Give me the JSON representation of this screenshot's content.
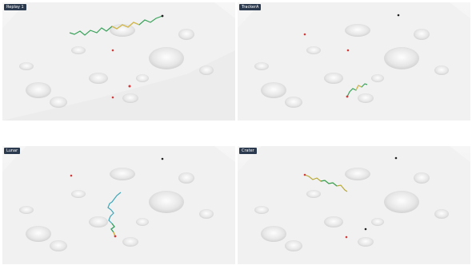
{
  "panels": [
    {
      "label": "Replay 1",
      "path_colors": [
        "#39a25a",
        "#e2b84a",
        "#9a5fbf"
      ],
      "marker_colors": [
        "#d23a3a",
        "#202020"
      ]
    },
    {
      "label": "TrackerA",
      "path_colors": [
        "#39a25a",
        "#e2b84a"
      ],
      "marker_colors": [
        "#d23a3a",
        "#202020"
      ]
    },
    {
      "label": "Lunar",
      "path_colors": [
        "#3fa7b8",
        "#39a25a",
        "#e2b84a"
      ],
      "marker_colors": [
        "#d23a3a",
        "#202020"
      ]
    },
    {
      "label": "Crater",
      "path_colors": [
        "#39a25a",
        "#b8a93a"
      ],
      "marker_colors": [
        "#d23a3a",
        "#202020"
      ]
    }
  ]
}
